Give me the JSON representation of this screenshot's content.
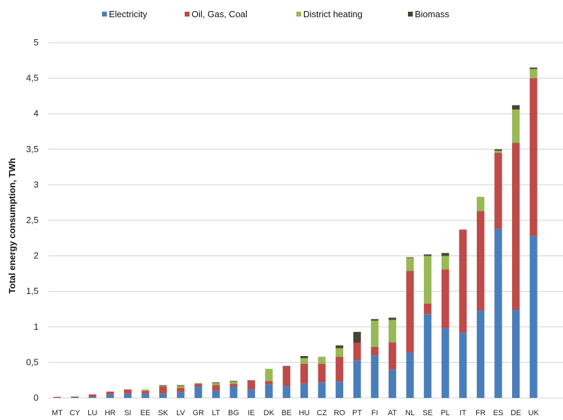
{
  "chart_data": {
    "type": "bar",
    "stacked": true,
    "ylabel": "Total energy consumption, TWh",
    "ylim": [
      0,
      5
    ],
    "yticks": [
      0,
      0.5,
      1,
      1.5,
      2,
      2.5,
      3,
      3.5,
      4,
      4.5,
      5
    ],
    "ytick_labels": [
      "0",
      "0,5",
      "1",
      "1,5",
      "2",
      "2,5",
      "3",
      "3,5",
      "4",
      "4,5",
      "5"
    ],
    "grid": true,
    "legend_position": "top",
    "categories": [
      "MT",
      "CY",
      "LU",
      "HR",
      "SI",
      "EE",
      "SK",
      "LV",
      "GR",
      "LT",
      "BG",
      "IE",
      "DK",
      "BE",
      "HU",
      "CZ",
      "RO",
      "PT",
      "FI",
      "AT",
      "NL",
      "SE",
      "PL",
      "IT",
      "FR",
      "ES",
      "DE",
      "UK"
    ],
    "series": [
      {
        "name": "Electricity",
        "color": "#4a7ebb",
        "values": [
          0.005,
          0.01,
          0.02,
          0.05,
          0.06,
          0.06,
          0.06,
          0.08,
          0.16,
          0.1,
          0.16,
          0.12,
          0.19,
          0.17,
          0.2,
          0.22,
          0.23,
          0.53,
          0.6,
          0.4,
          0.64,
          1.18,
          0.98,
          0.92,
          1.23,
          2.38,
          1.24,
          2.28
        ]
      },
      {
        "name": "Oil, Gas, Coal",
        "color": "#be4b48",
        "values": [
          0.01,
          0.01,
          0.03,
          0.04,
          0.06,
          0.04,
          0.1,
          0.06,
          0.04,
          0.08,
          0.04,
          0.13,
          0.05,
          0.27,
          0.28,
          0.26,
          0.35,
          0.25,
          0.12,
          0.38,
          1.15,
          0.15,
          0.83,
          1.45,
          1.4,
          1.07,
          2.35,
          2.22
        ]
      },
      {
        "name": "District heating",
        "color": "#98b954",
        "values": [
          0,
          0,
          0,
          0,
          0,
          0.02,
          0.01,
          0.03,
          0.01,
          0.03,
          0.03,
          0,
          0.17,
          0,
          0.08,
          0.1,
          0.12,
          0,
          0.37,
          0.32,
          0.18,
          0.67,
          0.19,
          0,
          0.2,
          0.03,
          0.47,
          0.13
        ]
      },
      {
        "name": "Biomass",
        "color": "#4a4232",
        "values": [
          0,
          0,
          0,
          0,
          0,
          0,
          0.01,
          0.01,
          0,
          0.01,
          0.01,
          0,
          0,
          0.01,
          0.03,
          0,
          0.04,
          0.15,
          0.02,
          0.03,
          0.01,
          0.02,
          0.04,
          0,
          0,
          0.02,
          0.06,
          0.02
        ]
      }
    ]
  }
}
